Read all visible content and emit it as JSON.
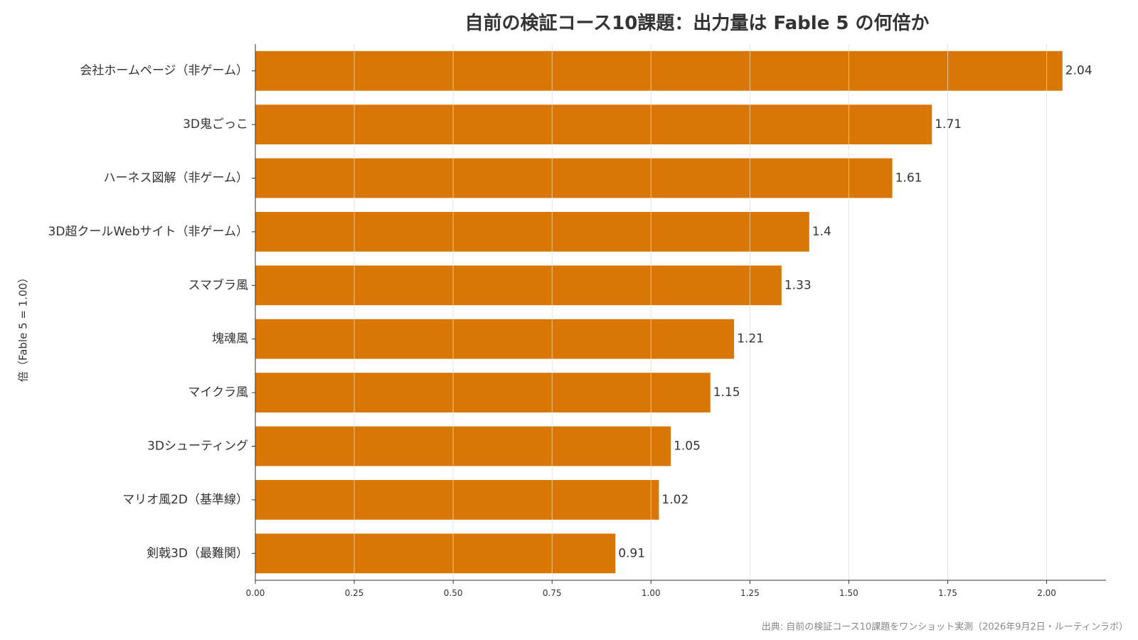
{
  "chart_data": {
    "type": "bar",
    "orientation": "horizontal",
    "title": "自前の検証コース10課題：出力量は Fable 5 の何倍か",
    "xlabel": "",
    "ylabel": "倍（Fable 5 = 1.00）",
    "categories": [
      "会社ホームページ（非ゲーム）",
      "3D鬼ごっこ",
      "ハーネス図解（非ゲーム）",
      "3D超クールWebサイト（非ゲーム）",
      "スマブラ風",
      "塊魂風",
      "マイクラ風",
      "3Dシューティング",
      "マリオ風2D（基準線）",
      "剣戟3D（最難関）"
    ],
    "values": [
      2.04,
      1.71,
      1.61,
      1.4,
      1.33,
      1.21,
      1.15,
      1.05,
      1.02,
      0.91
    ],
    "value_labels": [
      "2.04",
      "1.71",
      "1.61",
      "1.4",
      "1.33",
      "1.21",
      "1.15",
      "1.05",
      "1.02",
      "0.91"
    ],
    "xlim": [
      0,
      2.15
    ],
    "x_ticks": [
      "0.00",
      "0.25",
      "0.50",
      "0.75",
      "1.00",
      "1.25",
      "1.50",
      "1.75",
      "2.00"
    ],
    "grid": "vertical",
    "bar_color": "#D97706",
    "grid_color": "#E5E5E5",
    "source_note": "出典: 自前の検証コース10課題をワンショット実測（2026年9月2日・ルーティンラボ）"
  }
}
